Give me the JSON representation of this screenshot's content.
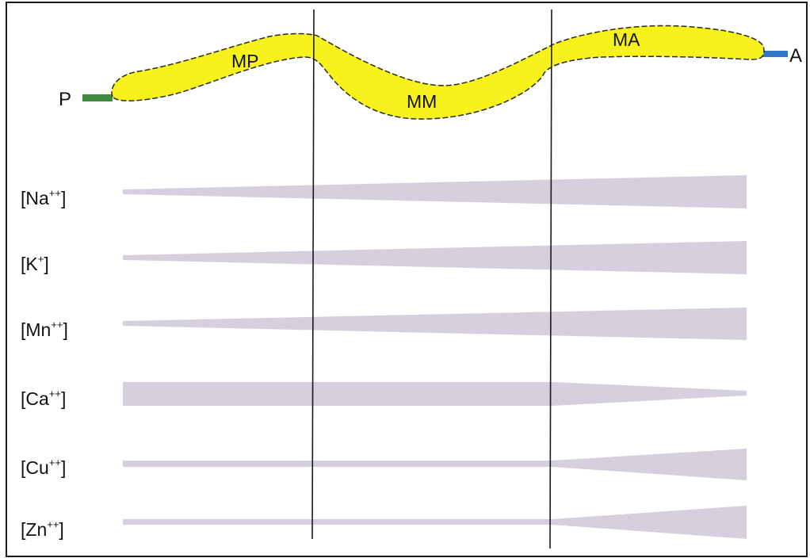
{
  "colors": {
    "worm_fill": "#f8f21c",
    "worm_outline": "#2a2a20",
    "posterior_stub": "#3f8a3f",
    "anterior_stub": "#2f78c8",
    "gradient_fill": "#d6cfdd",
    "lines": "#1a1a1a"
  },
  "diagram": {
    "end_labels": {
      "posterior": "P",
      "anterior": "A"
    },
    "segments": [
      {
        "id": "mp",
        "label": "MP"
      },
      {
        "id": "mm",
        "label": "MM"
      },
      {
        "id": "ma",
        "label": "MA"
      }
    ],
    "ions": [
      {
        "id": "na",
        "element": "Na",
        "charge": "++",
        "profile": "increasing toward A"
      },
      {
        "id": "k",
        "element": "K",
        "charge": "+",
        "profile": "increasing toward A"
      },
      {
        "id": "mn",
        "element": "Mn",
        "charge": "++",
        "profile": "increasing toward A"
      },
      {
        "id": "ca",
        "element": "Ca",
        "charge": "++",
        "profile": "uniform, decreasing in MA"
      },
      {
        "id": "cu",
        "element": "Cu",
        "charge": "++",
        "profile": "uniform, increasing in MA"
      },
      {
        "id": "zn",
        "element": "Zn",
        "charge": "++",
        "profile": "uniform, increasing in MA"
      }
    ]
  }
}
